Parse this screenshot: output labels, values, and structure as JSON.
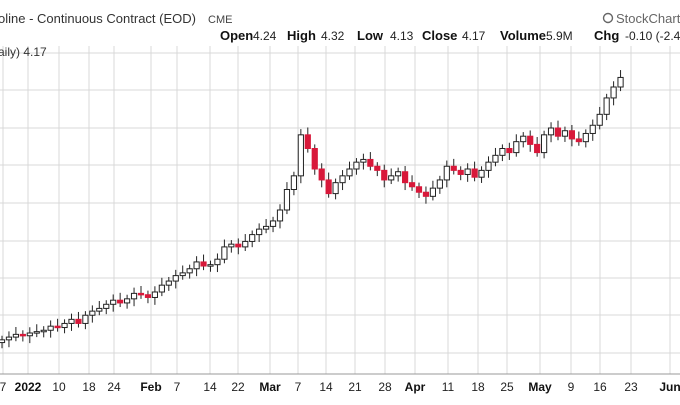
{
  "header": {
    "title": "oline - Continuous Contract (EOD)",
    "exchange": "CME",
    "brand": "StockCharts",
    "ohlc": [
      {
        "label": "Open",
        "value": "4.24"
      },
      {
        "label": "High",
        "value": "4.32"
      },
      {
        "label": "Low",
        "value": "4.13"
      },
      {
        "label": "Close",
        "value": "4.17"
      },
      {
        "label": "Volume",
        "value": "5.9M"
      },
      {
        "label": "Chg",
        "value": "-0.10 (-2.4"
      }
    ],
    "legend": "aily) 4.17"
  },
  "colors": {
    "up": "#ffffff",
    "down": "#d8183a",
    "wick": "#222222",
    "grid": "#d9d9d9",
    "axis": "#999999"
  },
  "chart_data": {
    "type": "candlestick",
    "title": "oline - Continuous Contract (EOD)",
    "xlabel": "",
    "ylabel": "",
    "grid": true,
    "x_ticks": [
      {
        "label": "7",
        "bold": false
      },
      {
        "label": "2022",
        "bold": true
      },
      {
        "label": "10",
        "bold": false
      },
      {
        "label": "18",
        "bold": false
      },
      {
        "label": "24",
        "bold": false
      },
      {
        "label": "Feb",
        "bold": true
      },
      {
        "label": "7",
        "bold": false
      },
      {
        "label": "14",
        "bold": false
      },
      {
        "label": "22",
        "bold": false
      },
      {
        "label": "Mar",
        "bold": true
      },
      {
        "label": "7",
        "bold": false
      },
      {
        "label": "14",
        "bold": false
      },
      {
        "label": "21",
        "bold": false
      },
      {
        "label": "28",
        "bold": false
      },
      {
        "label": "Apr",
        "bold": true
      },
      {
        "label": "11",
        "bold": false
      },
      {
        "label": "18",
        "bold": false
      },
      {
        "label": "25",
        "bold": false
      },
      {
        "label": "May",
        "bold": true
      },
      {
        "label": "9",
        "bold": false
      },
      {
        "label": "16",
        "bold": false
      },
      {
        "label": "23",
        "bold": false
      },
      {
        "label": "Jun",
        "bold": true
      }
    ],
    "series": [
      {
        "close": [
          2.25,
          2.27,
          2.29,
          2.28,
          2.3,
          2.31,
          2.32,
          2.35,
          2.34,
          2.37,
          2.4,
          2.37,
          2.43,
          2.46,
          2.48,
          2.51,
          2.54,
          2.52,
          2.55,
          2.59,
          2.58,
          2.56,
          2.6,
          2.65,
          2.68,
          2.72,
          2.74,
          2.77,
          2.82,
          2.79,
          2.8,
          2.84,
          2.93,
          2.95,
          2.93,
          2.97,
          3.02,
          3.06,
          3.08,
          3.12,
          3.2,
          3.35,
          3.45,
          3.75,
          3.65,
          3.5,
          3.42,
          3.32,
          3.4,
          3.45,
          3.5,
          3.55,
          3.57,
          3.52,
          3.49,
          3.42,
          3.45,
          3.48,
          3.4,
          3.37,
          3.33,
          3.3,
          3.36,
          3.42,
          3.52,
          3.49,
          3.46,
          3.5,
          3.44,
          3.49,
          3.55,
          3.6,
          3.65,
          3.62,
          3.7,
          3.74,
          3.68,
          3.62,
          3.75,
          3.8,
          3.74,
          3.78,
          3.72,
          3.7,
          3.76,
          3.82,
          3.9,
          4.02,
          4.1,
          4.17
        ]
      }
    ]
  }
}
